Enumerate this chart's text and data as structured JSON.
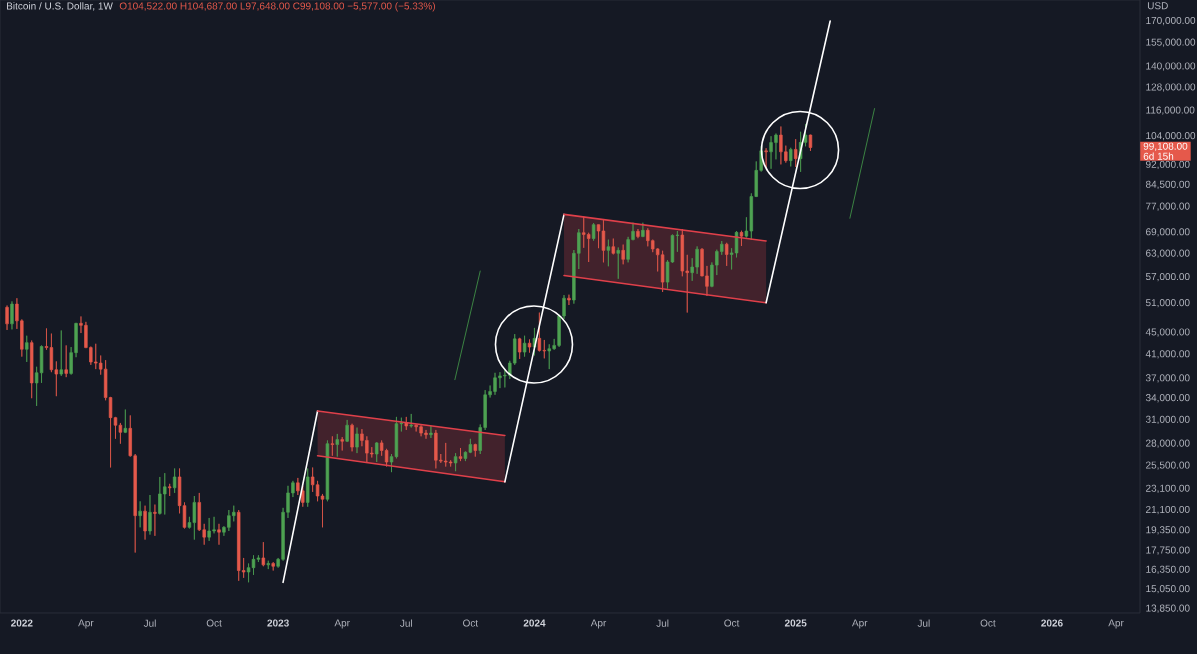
{
  "chart_data": {
    "type": "candlestick",
    "title": "Bitcoin / U.S. Dollar, 1W",
    "subtitle": "O104,522.00 H104,687.00 L97,648.00 C99,108.00 −5,577.00 (−5.33%)",
    "ylabel": "USD",
    "log": true,
    "xlim": [
      "2021-12-03",
      "2026-05-10"
    ],
    "ylim": [
      13600,
      186000
    ],
    "xticks": [
      {
        "value": "2022-01-03",
        "label": "2022"
      },
      {
        "value": "2022-04-04",
        "label": "Apr"
      },
      {
        "value": "2022-07-04",
        "label": "Jul"
      },
      {
        "value": "2022-10-03",
        "label": "Oct"
      },
      {
        "value": "2023-01-02",
        "label": "2023"
      },
      {
        "value": "2023-04-03",
        "label": "Apr"
      },
      {
        "value": "2023-07-03",
        "label": "Jul"
      },
      {
        "value": "2023-10-02",
        "label": "Oct"
      },
      {
        "value": "2024-01-01",
        "label": "2024"
      },
      {
        "value": "2024-04-01",
        "label": "Apr"
      },
      {
        "value": "2024-07-01",
        "label": "Jul"
      },
      {
        "value": "2024-10-07",
        "label": "Oct"
      },
      {
        "value": "2025-01-06",
        "label": "2025"
      },
      {
        "value": "2025-04-07",
        "label": "Apr"
      },
      {
        "value": "2025-07-07",
        "label": "Jul"
      },
      {
        "value": "2025-10-06",
        "label": "Oct"
      },
      {
        "value": "2026-01-05",
        "label": "2026"
      },
      {
        "value": "2026-04-06",
        "label": "Apr"
      }
    ],
    "yticks": [
      {
        "value": 13850,
        "label": "13,850.00"
      },
      {
        "value": 15050,
        "label": "15,050.00"
      },
      {
        "value": 16350,
        "label": "16,350.00"
      },
      {
        "value": 17750,
        "label": "17,750.00"
      },
      {
        "value": 19350,
        "label": "19,350.00"
      },
      {
        "value": 21100,
        "label": "21,100.00"
      },
      {
        "value": 23100,
        "label": "23,100.00"
      },
      {
        "value": 25500,
        "label": "25,500.00"
      },
      {
        "value": 28000,
        "label": "28,000.00"
      },
      {
        "value": 31000,
        "label": "31,000.00"
      },
      {
        "value": 34000,
        "label": "34,000.00"
      },
      {
        "value": 37000,
        "label": "37,000.00"
      },
      {
        "value": 41000,
        "label": "41,000.00"
      },
      {
        "value": 45000,
        "label": "45,000.00"
      },
      {
        "value": 51000,
        "label": "51,000.00"
      },
      {
        "value": 57000,
        "label": "57,000.00"
      },
      {
        "value": 63000,
        "label": "63,000.00"
      },
      {
        "value": 69000,
        "label": "69,000.00"
      },
      {
        "value": 77000,
        "label": "77,000.00"
      },
      {
        "value": 84500,
        "label": "84,500.00"
      },
      {
        "value": 92000,
        "label": "92,000.00"
      },
      {
        "value": 104000,
        "label": "104,000.00"
      },
      {
        "value": 116000,
        "label": "116,000.00"
      },
      {
        "value": 128000,
        "label": "128,000.00"
      },
      {
        "value": 140000,
        "label": "140,000.00"
      },
      {
        "value": 155000,
        "label": "155,000.00"
      },
      {
        "value": 170000,
        "label": "170,000.00"
      }
    ],
    "x": [
      "2021-12-13",
      "2021-12-20",
      "2021-12-27",
      "2022-01-03",
      "2022-01-10",
      "2022-01-17",
      "2022-01-24",
      "2022-01-31",
      "2022-02-07",
      "2022-02-14",
      "2022-02-21",
      "2022-02-28",
      "2022-03-07",
      "2022-03-14",
      "2022-03-21",
      "2022-03-28",
      "2022-04-04",
      "2022-04-11",
      "2022-04-18",
      "2022-04-25",
      "2022-05-02",
      "2022-05-09",
      "2022-05-16",
      "2022-05-23",
      "2022-05-30",
      "2022-06-06",
      "2022-06-13",
      "2022-06-20",
      "2022-06-27",
      "2022-07-04",
      "2022-07-11",
      "2022-07-18",
      "2022-07-25",
      "2022-08-01",
      "2022-08-08",
      "2022-08-15",
      "2022-08-22",
      "2022-08-29",
      "2022-09-05",
      "2022-09-12",
      "2022-09-19",
      "2022-09-26",
      "2022-10-03",
      "2022-10-10",
      "2022-10-17",
      "2022-10-24",
      "2022-10-31",
      "2022-11-07",
      "2022-11-14",
      "2022-11-21",
      "2022-11-28",
      "2022-12-05",
      "2022-12-12",
      "2022-12-19",
      "2022-12-26",
      "2023-01-02",
      "2023-01-09",
      "2023-01-16",
      "2023-01-23",
      "2023-01-30",
      "2023-02-06",
      "2023-02-13",
      "2023-02-20",
      "2023-02-27",
      "2023-03-06",
      "2023-03-13",
      "2023-03-20",
      "2023-03-27",
      "2023-04-03",
      "2023-04-10",
      "2023-04-17",
      "2023-04-24",
      "2023-05-01",
      "2023-05-08",
      "2023-05-15",
      "2023-05-22",
      "2023-05-29",
      "2023-06-05",
      "2023-06-12",
      "2023-06-19",
      "2023-06-26",
      "2023-07-03",
      "2023-07-10",
      "2023-07-17",
      "2023-07-24",
      "2023-07-31",
      "2023-08-07",
      "2023-08-14",
      "2023-08-21",
      "2023-08-28",
      "2023-09-04",
      "2023-09-11",
      "2023-09-18",
      "2023-09-25",
      "2023-10-02",
      "2023-10-09",
      "2023-10-16",
      "2023-10-23",
      "2023-10-30",
      "2023-11-06",
      "2023-11-13",
      "2023-11-20",
      "2023-11-27",
      "2023-12-04",
      "2023-12-11",
      "2023-12-18",
      "2023-12-25",
      "2024-01-01",
      "2024-01-08",
      "2024-01-15",
      "2024-01-22",
      "2024-01-29",
      "2024-02-05",
      "2024-02-12",
      "2024-02-19",
      "2024-02-26",
      "2024-03-04",
      "2024-03-11",
      "2024-03-18",
      "2024-03-25",
      "2024-04-01",
      "2024-04-08",
      "2024-04-15",
      "2024-04-22",
      "2024-04-29",
      "2024-05-06",
      "2024-05-13",
      "2024-05-20",
      "2024-05-27",
      "2024-06-03",
      "2024-06-10",
      "2024-06-17",
      "2024-06-24",
      "2024-07-01",
      "2024-07-08",
      "2024-07-15",
      "2024-07-22",
      "2024-07-29",
      "2024-08-05",
      "2024-08-12",
      "2024-08-19",
      "2024-08-26",
      "2024-09-02",
      "2024-09-09",
      "2024-09-16",
      "2024-09-23",
      "2024-09-30",
      "2024-10-07",
      "2024-10-14",
      "2024-10-21",
      "2024-10-28",
      "2024-11-04",
      "2024-11-11",
      "2024-11-18",
      "2024-11-25",
      "2024-12-02",
      "2024-12-09",
      "2024-12-16",
      "2024-12-23",
      "2024-12-30",
      "2025-01-06",
      "2025-01-13",
      "2025-01-20",
      "2025-01-27"
    ],
    "ohlc": [
      [
        50100,
        50500,
        45500,
        46700
      ],
      [
        46700,
        51400,
        45600,
        50800
      ],
      [
        50800,
        52100,
        45700,
        47300
      ],
      [
        47300,
        47600,
        40600,
        41900
      ],
      [
        41900,
        44400,
        39700,
        43100
      ],
      [
        43100,
        43500,
        34000,
        36300
      ],
      [
        36300,
        38900,
        32900,
        37900
      ],
      [
        37900,
        42600,
        36300,
        42400
      ],
      [
        42400,
        45800,
        41800,
        42200
      ],
      [
        42200,
        44800,
        38000,
        38400
      ],
      [
        38400,
        39800,
        34300,
        37700
      ],
      [
        37700,
        45400,
        37400,
        38400
      ],
      [
        38400,
        42600,
        37200,
        37800
      ],
      [
        37800,
        42300,
        37600,
        41300
      ],
      [
        41300,
        46900,
        40500,
        46800
      ],
      [
        46800,
        48200,
        44900,
        46400
      ],
      [
        46400,
        47100,
        42100,
        42200
      ],
      [
        42200,
        42400,
        39200,
        39700
      ],
      [
        39700,
        42900,
        38500,
        39500
      ],
      [
        39500,
        40800,
        37600,
        38500
      ],
      [
        38500,
        40000,
        33700,
        34100
      ],
      [
        34100,
        34200,
        25300,
        31300
      ],
      [
        31300,
        31400,
        28600,
        30300
      ],
      [
        30300,
        30600,
        28000,
        29400
      ],
      [
        29400,
        32400,
        29300,
        29900
      ],
      [
        29900,
        31600,
        26500,
        26600
      ],
      [
        26600,
        26800,
        17600,
        20600
      ],
      [
        20600,
        21900,
        19600,
        21000
      ],
      [
        21000,
        21500,
        18600,
        19300
      ],
      [
        19300,
        22500,
        19000,
        20900
      ],
      [
        20900,
        21600,
        18900,
        20800
      ],
      [
        20800,
        24300,
        20700,
        22600
      ],
      [
        22600,
        24700,
        20700,
        23300
      ],
      [
        23300,
        23600,
        22400,
        23200
      ],
      [
        23200,
        25200,
        22700,
        24300
      ],
      [
        24300,
        25200,
        20800,
        21500
      ],
      [
        21500,
        21800,
        19500,
        19600
      ],
      [
        19600,
        20500,
        19500,
        20000
      ],
      [
        20000,
        22400,
        18600,
        21800
      ],
      [
        21800,
        22700,
        19300,
        19400
      ],
      [
        19400,
        19900,
        18200,
        18800
      ],
      [
        18800,
        20400,
        18500,
        19300
      ],
      [
        19300,
        20500,
        19100,
        19400
      ],
      [
        19400,
        19900,
        18200,
        19200
      ],
      [
        19200,
        19700,
        18900,
        19600
      ],
      [
        19600,
        21100,
        19300,
        20600
      ],
      [
        20600,
        21500,
        20100,
        20900
      ],
      [
        20900,
        21100,
        15600,
        16300
      ],
      [
        16300,
        17200,
        15800,
        16200
      ],
      [
        16200,
        16800,
        15500,
        16500
      ],
      [
        16500,
        17400,
        16000,
        17100
      ],
      [
        17100,
        17400,
        16900,
        17200
      ],
      [
        17200,
        18400,
        16600,
        16700
      ],
      [
        16700,
        17000,
        16400,
        16800
      ],
      [
        16800,
        16900,
        16300,
        16600
      ],
      [
        16600,
        17200,
        16500,
        17100
      ],
      [
        17100,
        21300,
        17000,
        20900
      ],
      [
        20900,
        23400,
        20400,
        22700
      ],
      [
        22700,
        23900,
        22300,
        23700
      ],
      [
        23700,
        24200,
        22500,
        22900
      ],
      [
        22900,
        23400,
        21400,
        21800
      ],
      [
        21800,
        25200,
        21400,
        24300
      ],
      [
        24300,
        25300,
        22800,
        23500
      ],
      [
        23500,
        23900,
        21900,
        22400
      ],
      [
        22400,
        22600,
        19600,
        22100
      ],
      [
        22100,
        28400,
        21900,
        28000
      ],
      [
        28000,
        28900,
        26600,
        27900
      ],
      [
        27900,
        29200,
        26500,
        28500
      ],
      [
        28500,
        28800,
        27200,
        28300
      ],
      [
        28300,
        31000,
        28200,
        30300
      ],
      [
        30300,
        30500,
        27100,
        27600
      ],
      [
        27600,
        30000,
        26900,
        29200
      ],
      [
        29200,
        29800,
        27700,
        28400
      ],
      [
        28400,
        28900,
        25800,
        26900
      ],
      [
        26900,
        27600,
        26400,
        26800
      ],
      [
        26800,
        28200,
        25900,
        28100
      ],
      [
        28100,
        28400,
        26600,
        27200
      ],
      [
        27200,
        27400,
        25400,
        25900
      ],
      [
        25900,
        26800,
        24800,
        26500
      ],
      [
        26500,
        31400,
        26300,
        30500
      ],
      [
        30500,
        31300,
        29500,
        30600
      ],
      [
        30600,
        31400,
        29700,
        30200
      ],
      [
        30200,
        31800,
        30000,
        30300
      ],
      [
        30300,
        30400,
        29500,
        30100
      ],
      [
        30100,
        30300,
        28900,
        29300
      ],
      [
        29300,
        29700,
        28600,
        29100
      ],
      [
        29100,
        30200,
        28700,
        29300
      ],
      [
        29300,
        29700,
        25200,
        26100
      ],
      [
        26100,
        26800,
        25800,
        26000
      ],
      [
        26000,
        28100,
        25400,
        25900
      ],
      [
        25900,
        26100,
        25400,
        25800
      ],
      [
        25800,
        26900,
        24900,
        26500
      ],
      [
        26500,
        27500,
        26000,
        26300
      ],
      [
        26300,
        27100,
        26000,
        27000
      ],
      [
        27000,
        28600,
        26900,
        27900
      ],
      [
        27900,
        28000,
        26500,
        27200
      ],
      [
        27200,
        30400,
        26800,
        30000
      ],
      [
        30000,
        35200,
        29700,
        34500
      ],
      [
        34500,
        35900,
        34100,
        35000
      ],
      [
        35000,
        37900,
        34500,
        37100
      ],
      [
        37100,
        38000,
        35500,
        37400
      ],
      [
        37400,
        38400,
        35600,
        37500
      ],
      [
        37500,
        39900,
        36900,
        39500
      ],
      [
        39500,
        44700,
        39200,
        43800
      ],
      [
        43800,
        44000,
        40200,
        41400
      ],
      [
        41400,
        44400,
        40600,
        43000
      ],
      [
        43000,
        43700,
        41300,
        42300
      ],
      [
        42300,
        45900,
        40800,
        43900
      ],
      [
        43900,
        49000,
        41500,
        41700
      ],
      [
        41700,
        43600,
        40300,
        41600
      ],
      [
        41600,
        42800,
        38500,
        42000
      ],
      [
        42000,
        43800,
        41800,
        42600
      ],
      [
        42600,
        48600,
        42300,
        48300
      ],
      [
        48300,
        52800,
        47700,
        52100
      ],
      [
        52100,
        52900,
        50600,
        51700
      ],
      [
        51700,
        64000,
        50900,
        63100
      ],
      [
        63100,
        70000,
        59000,
        68900
      ],
      [
        68900,
        73800,
        64600,
        68400
      ],
      [
        68400,
        68900,
        60800,
        67200
      ],
      [
        67200,
        71800,
        66600,
        71300
      ],
      [
        71300,
        71400,
        64500,
        69400
      ],
      [
        69400,
        72800,
        60700,
        63900
      ],
      [
        63900,
        66900,
        59700,
        64900
      ],
      [
        64900,
        67200,
        62800,
        63100
      ],
      [
        63100,
        64700,
        56600,
        63900
      ],
      [
        63900,
        65500,
        60200,
        61500
      ],
      [
        61500,
        67700,
        60700,
        66900
      ],
      [
        66900,
        71900,
        66700,
        69300
      ],
      [
        69300,
        70000,
        67300,
        67800
      ],
      [
        67800,
        71900,
        67600,
        69600
      ],
      [
        69600,
        70200,
        65000,
        66600
      ],
      [
        66600,
        66900,
        63400,
        64300
      ],
      [
        64300,
        64500,
        58400,
        62700
      ],
      [
        62700,
        63800,
        53500,
        55800
      ],
      [
        55800,
        61300,
        54300,
        60800
      ],
      [
        60800,
        68400,
        60600,
        68100
      ],
      [
        68100,
        69400,
        63500,
        68200
      ],
      [
        68200,
        70000,
        57200,
        58500
      ],
      [
        58500,
        62700,
        49000,
        58100
      ],
      [
        58100,
        61800,
        56100,
        59500
      ],
      [
        59500,
        65000,
        57800,
        64200
      ],
      [
        64200,
        64500,
        57200,
        57300
      ],
      [
        57300,
        59800,
        52600,
        54800
      ],
      [
        54800,
        60700,
        54600,
        60000
      ],
      [
        60000,
        64100,
        57500,
        63600
      ],
      [
        63600,
        66500,
        62700,
        65600
      ],
      [
        65600,
        66000,
        59800,
        62800
      ],
      [
        62800,
        64500,
        58900,
        63200
      ],
      [
        63200,
        69400,
        62000,
        69000
      ],
      [
        69000,
        69500,
        65100,
        67900
      ],
      [
        67900,
        73600,
        67500,
        69400
      ],
      [
        69400,
        81500,
        66800,
        80400
      ],
      [
        80400,
        93400,
        80200,
        89900
      ],
      [
        89900,
        99600,
        89400,
        97700
      ],
      [
        97700,
        98800,
        90800,
        97300
      ],
      [
        97300,
        104000,
        90500,
        101200
      ],
      [
        101200,
        105200,
        94200,
        104500
      ],
      [
        104500,
        108400,
        92200,
        97300
      ],
      [
        97300,
        99900,
        92900,
        93700
      ],
      [
        93700,
        99000,
        91400,
        98300
      ],
      [
        98300,
        102700,
        91200,
        94500
      ],
      [
        94500,
        106000,
        89300,
        101300
      ],
      [
        101300,
        109600,
        99600,
        104500
      ],
      [
        104522,
        104687,
        97648,
        99108
      ]
    ],
    "colors": [
      "#e5594b",
      "#4ea252",
      "#e5594b",
      "#e5594b",
      "#4ea252",
      "#e5594b",
      "#4ea252",
      "#4ea252",
      "#e5594b",
      "#e5594b",
      "#e5594b",
      "#4ea252",
      "#e5594b",
      "#4ea252",
      "#4ea252",
      "#e5594b",
      "#e5594b",
      "#e5594b",
      "#e5594b",
      "#e5594b",
      "#e5594b",
      "#e5594b",
      "#e5594b",
      "#e5594b",
      "#4ea252",
      "#e5594b",
      "#e5594b",
      "#4ea252",
      "#e5594b",
      "#4ea252",
      "#e5594b",
      "#4ea252",
      "#4ea252",
      "#e5594b",
      "#4ea252",
      "#e5594b",
      "#e5594b",
      "#4ea252",
      "#4ea252",
      "#e5594b",
      "#e5594b",
      "#4ea252",
      "#4ea252",
      "#e5594b",
      "#4ea252",
      "#4ea252",
      "#4ea252",
      "#e5594b",
      "#e5594b",
      "#4ea252",
      "#4ea252",
      "#4ea252",
      "#e5594b",
      "#4ea252",
      "#e5594b",
      "#4ea252",
      "#4ea252",
      "#4ea252",
      "#4ea252",
      "#e5594b",
      "#e5594b",
      "#4ea252",
      "#e5594b",
      "#e5594b",
      "#e5594b",
      "#4ea252",
      "#e5594b",
      "#4ea252",
      "#e5594b",
      "#4ea252",
      "#e5594b",
      "#4ea252",
      "#e5594b",
      "#e5594b",
      "#e5594b",
      "#4ea252",
      "#e5594b",
      "#e5594b",
      "#4ea252",
      "#4ea252",
      "#4ea252",
      "#e5594b",
      "#4ea252",
      "#e5594b",
      "#e5594b",
      "#e5594b",
      "#4ea252",
      "#e5594b",
      "#e5594b",
      "#e5594b",
      "#e5594b",
      "#4ea252",
      "#e5594b",
      "#4ea252",
      "#4ea252",
      "#e5594b",
      "#4ea252",
      "#4ea252",
      "#4ea252",
      "#4ea252",
      "#4ea252",
      "#4ea252",
      "#4ea252",
      "#4ea252",
      "#e5594b",
      "#4ea252",
      "#e5594b",
      "#4ea252",
      "#e5594b",
      "#e5594b",
      "#4ea252",
      "#4ea252",
      "#4ea252",
      "#4ea252",
      "#e5594b",
      "#4ea252",
      "#4ea252",
      "#e5594b",
      "#e5594b",
      "#4ea252",
      "#e5594b",
      "#e5594b",
      "#4ea252",
      "#e5594b",
      "#4ea252",
      "#e5594b",
      "#4ea252",
      "#4ea252",
      "#e5594b",
      "#4ea252",
      "#e5594b",
      "#e5594b",
      "#e5594b",
      "#e5594b",
      "#4ea252",
      "#4ea252",
      "#4ea252",
      "#e5594b",
      "#e5594b",
      "#4ea252",
      "#4ea252",
      "#e5594b",
      "#e5594b",
      "#4ea252",
      "#4ea252",
      "#4ea252",
      "#e5594b",
      "#4ea252",
      "#4ea252",
      "#e5594b",
      "#4ea252",
      "#4ea252",
      "#4ea252",
      "#4ea252",
      "#e5594b",
      "#4ea252",
      "#4ea252",
      "#e5594b",
      "#e5594b",
      "#4ea252",
      "#e5594b",
      "#4ea252",
      "#4ea252",
      "#e5594b"
    ],
    "series": [
      {
        "type": "line",
        "color": "#ffffff",
        "x": [
          "2023-01-09",
          "2023-02-27"
        ],
        "values": [
          15500,
          32200
        ]
      },
      {
        "type": "line",
        "color": "#e0404a",
        "x": [
          "2023-02-27",
          "2023-11-20"
        ],
        "values": [
          32200,
          29000
        ],
        "lower": [
          26600,
          23800
        ],
        "upper": [
          32200,
          29000
        ]
      },
      {
        "type": "line",
        "color": "#e0404a",
        "x": [
          "2023-02-27",
          "2023-11-20"
        ],
        "values": [
          26600,
          23800
        ]
      },
      {
        "type": "line",
        "color": "#ffffff",
        "x": [
          "2023-11-20",
          "2024-02-12"
        ],
        "values": [
          23800,
          74500
        ]
      },
      {
        "type": "line",
        "color": "#e0404a",
        "x": [
          "2024-02-12",
          "2024-11-25"
        ],
        "values": [
          74500,
          66500
        ],
        "lower": [
          57400,
          51100
        ],
        "upper": [
          74500,
          66500
        ]
      },
      {
        "type": "line",
        "color": "#e0404a",
        "x": [
          "2024-02-12",
          "2024-11-25"
        ],
        "values": [
          57400,
          51100
        ]
      },
      {
        "type": "line",
        "color": "#ffffff",
        "x": [
          "2024-11-25",
          "2025-02-24"
        ],
        "values": [
          51100,
          170000
        ]
      },
      {
        "type": "line",
        "color": "#3f8f46",
        "x": [
          "2023-09-10",
          "2023-10-16"
        ],
        "values": [
          36800,
          58500
        ]
      },
      {
        "type": "line",
        "color": "#3f8f46",
        "x": [
          "2025-03-24",
          "2025-04-28"
        ],
        "values": [
          73300,
          117000
        ]
      }
    ],
    "annotations": [
      "99,108.00",
      "6d 15h"
    ]
  }
}
